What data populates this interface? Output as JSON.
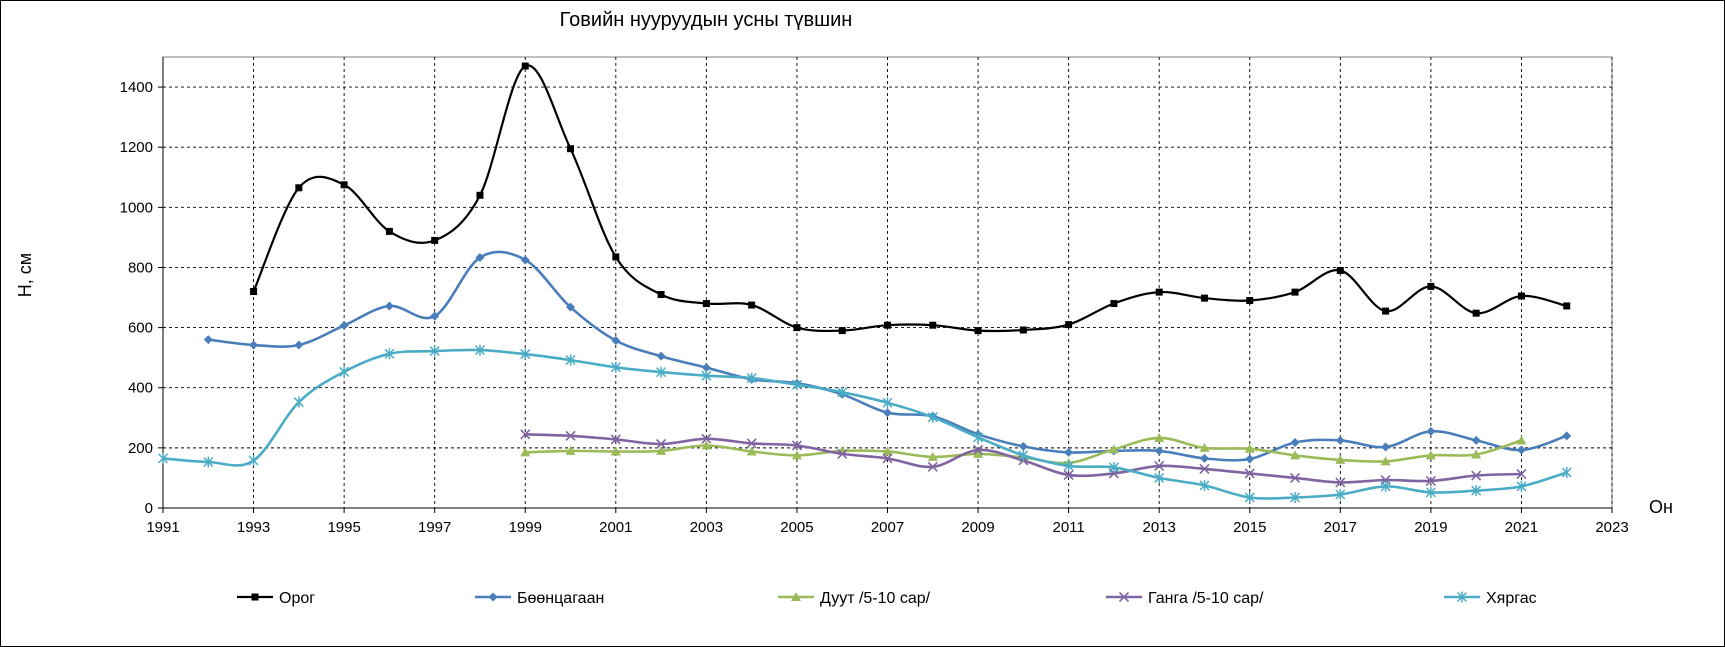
{
  "chart_data": {
    "type": "line",
    "title": "Говийн нууруудын усны түвшин",
    "xlabel": "Он",
    "ylabel": "H, см",
    "xlim": [
      1991,
      2023
    ],
    "ylim": [
      0,
      1500
    ],
    "x_ticks": [
      1991,
      1993,
      1995,
      1997,
      1999,
      2001,
      2003,
      2005,
      2007,
      2009,
      2011,
      2013,
      2015,
      2017,
      2019,
      2021,
      2023
    ],
    "y_ticks": [
      0,
      200,
      400,
      600,
      800,
      1000,
      1200,
      1400
    ],
    "grid": true,
    "smooth": true,
    "legend_position": "bottom",
    "series": [
      {
        "name": "Орог",
        "color": "#000000",
        "marker": "square",
        "x": [
          1993,
          1994,
          1995,
          1996,
          1997,
          1998,
          1999,
          2000,
          2001,
          2002,
          2003,
          2004,
          2005,
          2006,
          2007,
          2008,
          2009,
          2010,
          2011,
          2012,
          2013,
          2014,
          2015,
          2016,
          2017,
          2018,
          2019,
          2020,
          2021,
          2022
        ],
        "y": [
          720,
          1065,
          1075,
          920,
          890,
          1040,
          1470,
          1195,
          835,
          710,
          680,
          675,
          600,
          590,
          608,
          608,
          590,
          592,
          610,
          680,
          718,
          698,
          690,
          718,
          790,
          655,
          737,
          648,
          705,
          672
        ]
      },
      {
        "name": "Бөөнцагаан",
        "color": "#4a7ebb",
        "marker": "diamond",
        "x": [
          1992,
          1993,
          1994,
          1995,
          1996,
          1997,
          1998,
          1999,
          2000,
          2001,
          2002,
          2003,
          2004,
          2005,
          2006,
          2007,
          2008,
          2009,
          2010,
          2011,
          2012,
          2013,
          2014,
          2015,
          2016,
          2017,
          2018,
          2019,
          2020,
          2021,
          2022
        ],
        "y": [
          560,
          542,
          542,
          607,
          672,
          638,
          833,
          825,
          668,
          557,
          505,
          467,
          428,
          415,
          378,
          317,
          305,
          245,
          205,
          185,
          190,
          190,
          165,
          163,
          218,
          225,
          203,
          255,
          225,
          193,
          240
        ]
      },
      {
        "name": "Дуут  /5-10 сар/",
        "color": "#9bbb59",
        "marker": "triangle",
        "x": [
          1999,
          2000,
          2001,
          2002,
          2003,
          2004,
          2005,
          2006,
          2007,
          2008,
          2009,
          2010,
          2011,
          2012,
          2013,
          2014,
          2015,
          2016,
          2017,
          2018,
          2019,
          2020,
          2021
        ],
        "y": [
          185,
          190,
          188,
          190,
          208,
          188,
          175,
          190,
          188,
          170,
          180,
          168,
          150,
          195,
          233,
          200,
          197,
          175,
          160,
          155,
          175,
          178,
          225
        ]
      },
      {
        "name": "Ганга  /5-10 сар/",
        "color": "#8064a2",
        "marker": "x",
        "x": [
          1999,
          2000,
          2001,
          2002,
          2003,
          2004,
          2005,
          2006,
          2007,
          2008,
          2009,
          2010,
          2011,
          2012,
          2013,
          2014,
          2015,
          2016,
          2017,
          2018,
          2019,
          2020,
          2021
        ],
        "y": [
          245,
          240,
          228,
          213,
          230,
          215,
          208,
          180,
          165,
          137,
          193,
          158,
          110,
          115,
          140,
          130,
          115,
          100,
          85,
          93,
          90,
          108,
          113
        ]
      },
      {
        "name": "Хяргас",
        "color": "#4bacc6",
        "marker": "star",
        "x": [
          1991,
          1992,
          1993,
          1994,
          1995,
          1996,
          1997,
          1998,
          1999,
          2000,
          2001,
          2002,
          2003,
          2004,
          2005,
          2006,
          2007,
          2008,
          2009,
          2010,
          2011,
          2012,
          2013,
          2014,
          2015,
          2016,
          2017,
          2018,
          2019,
          2020,
          2021,
          2022
        ],
        "y": [
          165,
          153,
          158,
          352,
          453,
          513,
          522,
          525,
          512,
          492,
          468,
          452,
          440,
          432,
          410,
          385,
          350,
          302,
          235,
          175,
          140,
          135,
          100,
          75,
          35,
          35,
          45,
          72,
          52,
          58,
          72,
          118
        ]
      }
    ]
  }
}
